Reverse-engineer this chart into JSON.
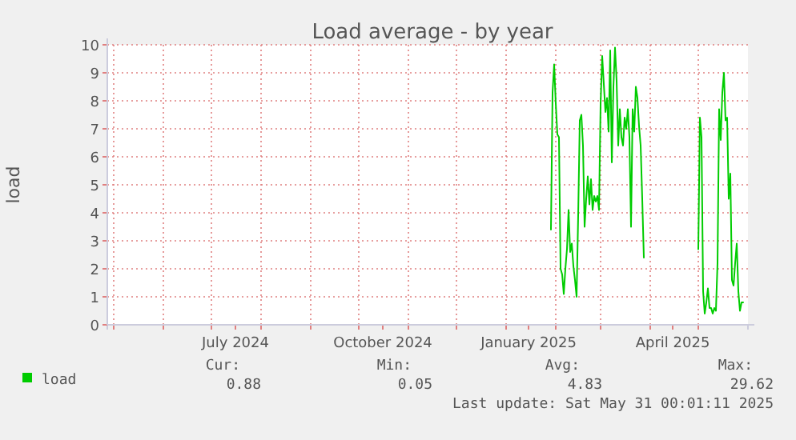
{
  "chart_data": {
    "type": "line",
    "title": "Load average - by year",
    "ylabel": "load",
    "xlim": [
      "2024-04-27",
      "2025-06-01"
    ],
    "xticks": [
      {
        "value": "2024-05-01",
        "label": null
      },
      {
        "value": "2024-06-01",
        "label": null
      },
      {
        "value": "2024-07-01",
        "label": null
      },
      {
        "value": "2024-08-01",
        "label": null
      },
      {
        "value": "2024-09-01",
        "label": null
      },
      {
        "value": "2024-10-01",
        "label": null
      },
      {
        "value": "2024-11-01",
        "label": null
      },
      {
        "value": "2024-12-01",
        "label": null
      },
      {
        "value": "2025-01-01",
        "label": null
      },
      {
        "value": "2025-02-01",
        "label": null
      },
      {
        "value": "2025-03-01",
        "label": null
      },
      {
        "value": "2025-04-01",
        "label": null
      },
      {
        "value": "2025-05-01",
        "label": null
      },
      {
        "value": "2024-07-16",
        "label": "July 2024"
      },
      {
        "value": "2024-10-16",
        "label": "October 2024"
      },
      {
        "value": "2025-01-15",
        "label": "January 2025"
      },
      {
        "value": "2025-04-15",
        "label": "April 2025"
      }
    ],
    "ylim": [
      0,
      10
    ],
    "yticks": [
      0,
      1,
      2,
      3,
      4,
      5,
      6,
      7,
      8,
      9,
      10
    ],
    "grid": true,
    "legend": "bottom left",
    "marker": "none",
    "line_style": "solid",
    "x": [
      "2025-01-29",
      "2025-01-30",
      "2025-01-31",
      "2025-02-01",
      "2025-02-02",
      "2025-02-03",
      "2025-02-04",
      "2025-02-05",
      "2025-02-06",
      "2025-02-07",
      "2025-02-08",
      "2025-02-09",
      "2025-02-10",
      "2025-02-11",
      "2025-02-12",
      "2025-02-13",
      "2025-02-14",
      "2025-02-15",
      "2025-02-16",
      "2025-02-17",
      "2025-02-18",
      "2025-02-19",
      "2025-02-20",
      "2025-02-21",
      "2025-02-22",
      "2025-02-23",
      "2025-02-24",
      "2025-02-25",
      "2025-02-26",
      "2025-02-27",
      "2025-02-28",
      "2025-03-01",
      "2025-03-02",
      "2025-03-03",
      "2025-03-04",
      "2025-03-05",
      "2025-03-06",
      "2025-03-07",
      "2025-03-08",
      "2025-03-09",
      "2025-03-10",
      "2025-03-11",
      "2025-03-12",
      "2025-03-13",
      "2025-03-14",
      "2025-03-15",
      "2025-03-16",
      "2025-03-17",
      "2025-03-18",
      "2025-03-19",
      "2025-03-20",
      "2025-03-21",
      "2025-03-22",
      "2025-03-23",
      "2025-03-24",
      "2025-03-25",
      "2025-03-26",
      "2025-03-27",
      "2025-03-28",
      "2025-03-29",
      "2025-05-01",
      "2025-05-02",
      "2025-05-03",
      "2025-05-04",
      "2025-05-05",
      "2025-05-06",
      "2025-05-07",
      "2025-05-08",
      "2025-05-09",
      "2025-05-10",
      "2025-05-11",
      "2025-05-12",
      "2025-05-13",
      "2025-05-14",
      "2025-05-15",
      "2025-05-16",
      "2025-05-17",
      "2025-05-18",
      "2025-05-19",
      "2025-05-20",
      "2025-05-21",
      "2025-05-22",
      "2025-05-23",
      "2025-05-24",
      "2025-05-25",
      "2025-05-26",
      "2025-05-27",
      "2025-05-28",
      "2025-05-29"
    ],
    "series": [
      {
        "name": "load",
        "color": "#00cc00",
        "values": [
          3.4,
          8.3,
          9.3,
          7.9,
          6.8,
          6.7,
          2.0,
          1.8,
          1.1,
          2.0,
          2.7,
          4.1,
          2.6,
          2.9,
          2.1,
          1.6,
          1.0,
          3.9,
          7.3,
          7.5,
          6.4,
          3.5,
          4.5,
          5.3,
          4.3,
          5.2,
          4.1,
          4.6,
          4.4,
          4.6,
          4.1,
          7.9,
          9.6,
          8.6,
          7.6,
          8.1,
          6.9,
          9.8,
          5.8,
          8.5,
          9.9,
          8.7,
          6.4,
          7.7,
          6.7,
          6.4,
          7.4,
          7.0,
          7.7,
          6.7,
          3.5,
          7.7,
          6.9,
          8.5,
          8.1,
          7.1,
          6.4,
          4.5,
          2.4,
          null,
          2.7,
          7.4,
          6.7,
          1.2,
          0.4,
          0.8,
          1.3,
          0.6,
          0.6,
          0.4,
          0.6,
          0.5,
          2.2,
          7.7,
          6.6,
          8.3,
          9.0,
          7.3,
          7.4,
          4.5,
          5.4,
          1.6,
          1.4,
          2.2,
          2.9,
          1.2,
          0.5,
          0.8,
          0.8
        ]
      }
    ],
    "annotations": [
      "Cur:",
      "Min:",
      "Avg:",
      "Max:",
      "0.88",
      "0.05",
      "4.83",
      "29.62",
      "Last update: Sat May 31 00:01:11 2025"
    ]
  }
}
